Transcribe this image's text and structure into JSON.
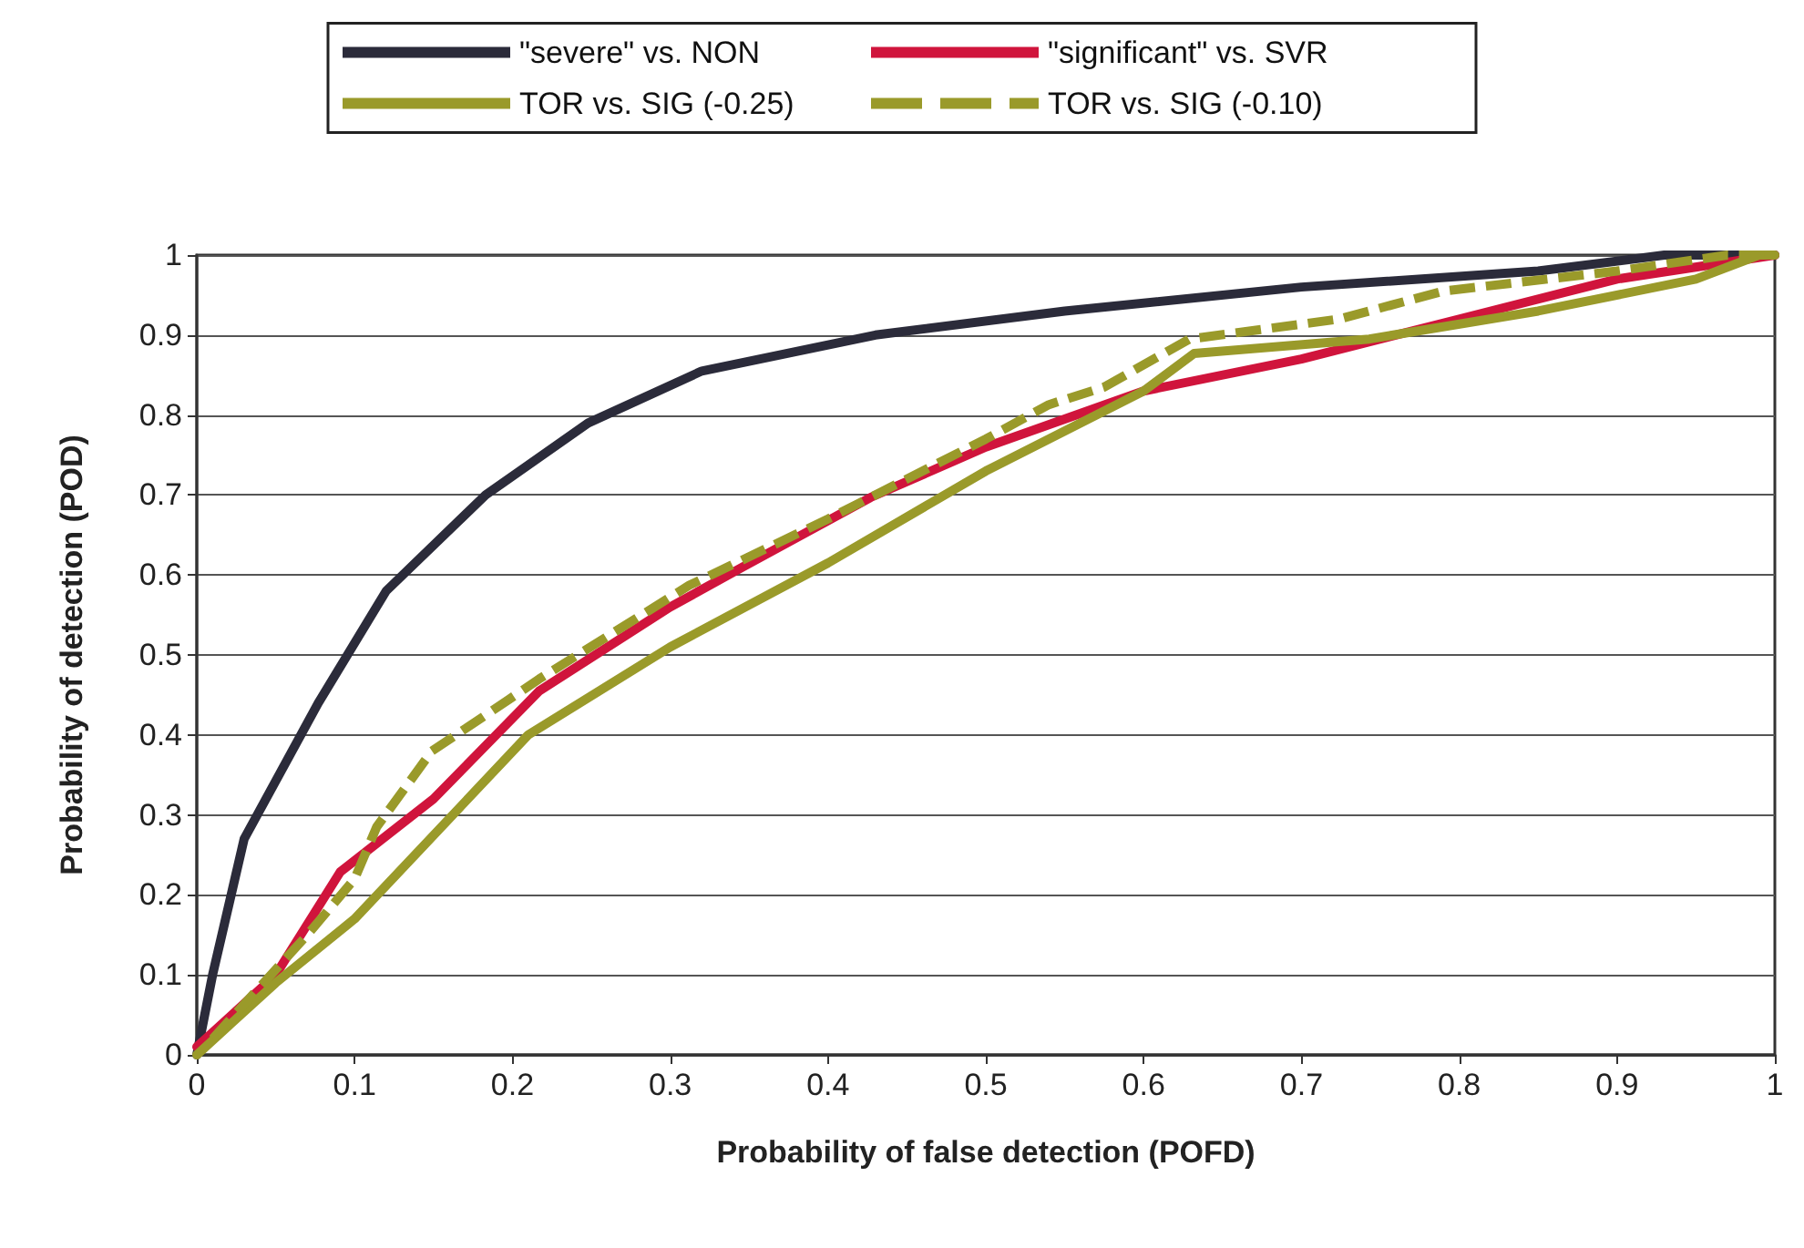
{
  "chart_data": {
    "type": "line",
    "xlabel": "Probability of false detection (POFD)",
    "ylabel": "Probability of detection (POD)",
    "xlim": [
      0,
      1
    ],
    "ylim": [
      0,
      1
    ],
    "xticks": [
      0,
      0.1,
      0.2,
      0.3,
      0.4,
      0.5,
      0.6,
      0.7,
      0.8,
      0.9,
      1
    ],
    "yticks": [
      0,
      0.1,
      0.2,
      0.3,
      0.4,
      0.5,
      0.6,
      0.7,
      0.8,
      0.9,
      1
    ],
    "grid": "y",
    "legend": "top",
    "marker": "none",
    "series": [
      {
        "name": "\"severe\" vs. NON",
        "color": "#2b2b3a",
        "line_style": "solid",
        "x": [
          0,
          0.01,
          0.03,
          0.077,
          0.12,
          0.183,
          0.248,
          0.32,
          0.43,
          0.55,
          0.7,
          0.85,
          0.93,
          1
        ],
        "values": [
          0,
          0.1,
          0.27,
          0.44,
          0.58,
          0.7,
          0.79,
          0.855,
          0.9,
          0.93,
          0.96,
          0.98,
          1,
          1
        ]
      },
      {
        "name": "\"significant\" vs. SVR",
        "color": "#d0143c",
        "line_style": "solid",
        "x": [
          0,
          0.05,
          0.091,
          0.15,
          0.217,
          0.3,
          0.346,
          0.427,
          0.5,
          0.6,
          0.7,
          0.8,
          0.9,
          1
        ],
        "values": [
          0.01,
          0.1,
          0.229,
          0.32,
          0.455,
          0.56,
          0.61,
          0.697,
          0.76,
          0.83,
          0.87,
          0.92,
          0.97,
          1
        ]
      },
      {
        "name": "TOR vs. SIG (-0.25)",
        "color": "#9a9a2a",
        "line_style": "solid",
        "x": [
          0,
          0.05,
          0.1,
          0.21,
          0.3,
          0.4,
          0.5,
          0.6,
          0.632,
          0.743,
          0.85,
          0.95,
          0.99,
          1
        ],
        "values": [
          0,
          0.09,
          0.17,
          0.4,
          0.51,
          0.615,
          0.73,
          0.83,
          0.877,
          0.895,
          0.93,
          0.97,
          1,
          1
        ]
      },
      {
        "name": "TOR vs. SIG (-0.10)",
        "color": "#9a9a2a",
        "line_style": "dashed",
        "x": [
          0.01,
          0.07,
          0.1,
          0.114,
          0.149,
          0.187,
          0.217,
          0.312,
          0.4,
          0.5,
          0.54,
          0.575,
          0.629,
          0.724,
          0.79,
          0.9,
          0.97,
          1
        ],
        "values": [
          0.02,
          0.15,
          0.22,
          0.285,
          0.38,
          0.43,
          0.47,
          0.587,
          0.67,
          0.77,
          0.813,
          0.835,
          0.895,
          0.92,
          0.955,
          0.98,
          1,
          1
        ]
      }
    ]
  }
}
